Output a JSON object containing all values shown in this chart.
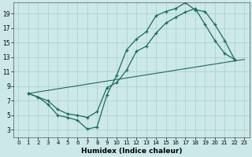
{
  "xlabel": "Humidex (Indice chaleur)",
  "bg_color": "#cce8e8",
  "grid_color": "#aacfcf",
  "line_color": "#1a6b5e",
  "xlim": [
    -0.5,
    23.5
  ],
  "ylim": [
    2,
    20.5
  ],
  "xticks": [
    0,
    1,
    2,
    3,
    4,
    5,
    6,
    7,
    8,
    9,
    10,
    11,
    12,
    13,
    14,
    15,
    16,
    17,
    18,
    19,
    20,
    21,
    22,
    23
  ],
  "yticks": [
    3,
    5,
    7,
    9,
    11,
    13,
    15,
    17,
    19
  ],
  "line1_x": [
    1,
    2,
    3,
    4,
    5,
    6,
    7,
    8,
    9,
    10,
    11,
    12,
    13,
    14,
    15,
    16,
    17,
    18,
    19,
    20,
    21,
    22
  ],
  "line1_y": [
    8,
    7.5,
    6.5,
    5.0,
    4.7,
    4.3,
    3.1,
    3.4,
    7.8,
    10.5,
    14.0,
    15.5,
    16.5,
    18.7,
    19.3,
    19.7,
    20.5,
    19.5,
    19.3,
    17.5,
    15.3,
    12.7
  ],
  "line2_x": [
    1,
    2,
    3,
    4,
    5,
    6,
    7,
    8,
    9,
    10,
    11,
    12,
    13,
    14,
    15,
    16,
    17,
    18,
    19,
    20,
    21,
    22
  ],
  "line2_y": [
    8,
    7.5,
    7.0,
    5.8,
    5.2,
    5.0,
    4.7,
    5.5,
    8.8,
    9.5,
    11.2,
    13.8,
    14.5,
    16.3,
    17.7,
    18.5,
    19.2,
    19.7,
    17.5,
    15.3,
    13.5,
    12.7
  ],
  "line3_x": [
    1,
    23
  ],
  "line3_y": [
    8,
    12.7
  ],
  "xlabel_fontsize": 6.5,
  "tick_fontsize_x": 5,
  "tick_fontsize_y": 5.5
}
